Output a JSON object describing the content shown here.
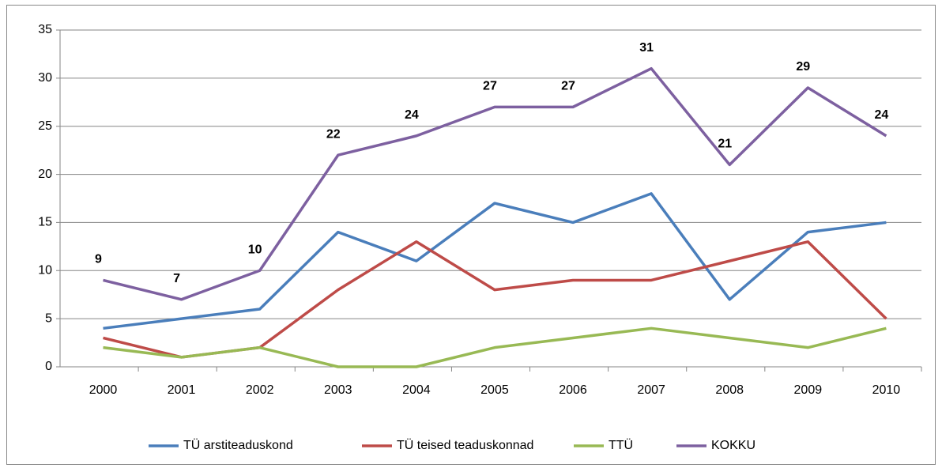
{
  "chart_data": {
    "type": "line",
    "categories": [
      "2000",
      "2001",
      "2002",
      "2003",
      "2004",
      "2005",
      "2006",
      "2007",
      "2008",
      "2009",
      "2010"
    ],
    "series": [
      {
        "name": "TÜ arstiteaduskond",
        "color": "#4a7ebb",
        "values": [
          4,
          5,
          6,
          14,
          11,
          17,
          15,
          18,
          7,
          14,
          15
        ]
      },
      {
        "name": "TÜ teised teaduskonnad",
        "color": "#be4b48",
        "values": [
          3,
          1,
          2,
          8,
          13,
          8,
          9,
          9,
          11,
          13,
          5
        ]
      },
      {
        "name": "TTÜ",
        "color": "#98b954",
        "values": [
          2,
          1,
          2,
          0,
          0,
          2,
          3,
          4,
          3,
          2,
          4
        ]
      },
      {
        "name": "KOKKU",
        "color": "#7d60a0",
        "values": [
          9,
          7,
          10,
          22,
          24,
          27,
          27,
          31,
          21,
          29,
          24
        ],
        "data_labels": true
      }
    ],
    "ylim": [
      0,
      35
    ],
    "yticks": [
      0,
      5,
      10,
      15,
      20,
      25,
      30,
      35
    ],
    "grid": true,
    "legend": "bottom"
  }
}
